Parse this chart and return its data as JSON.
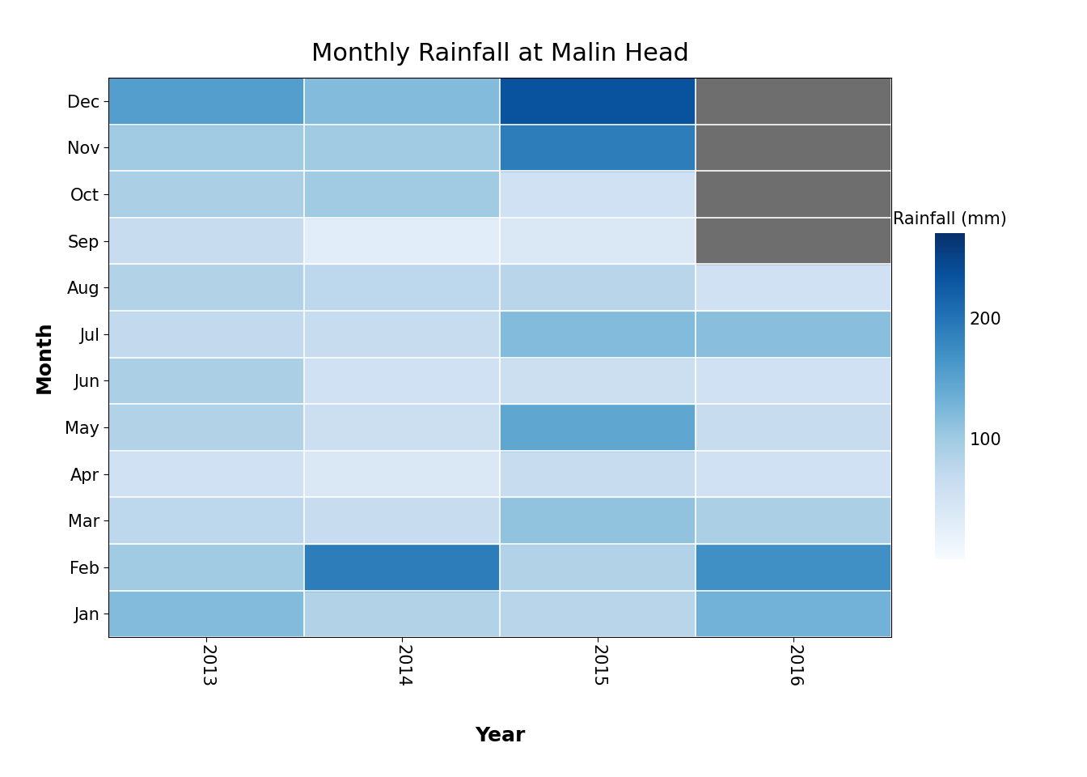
{
  "title": "Monthly Rainfall at Malin Head",
  "xlabel": "Year",
  "ylabel": "Month",
  "months": [
    "Jan",
    "Feb",
    "Mar",
    "Apr",
    "May",
    "Jun",
    "Jul",
    "Aug",
    "Sep",
    "Oct",
    "Nov",
    "Dec"
  ],
  "years": [
    "2013",
    "2014",
    "2015",
    "2016"
  ],
  "rainfall": [
    [
      120,
      85,
      80,
      130
    ],
    [
      100,
      190,
      85,
      170
    ],
    [
      75,
      65,
      110,
      90
    ],
    [
      55,
      40,
      65,
      55
    ],
    [
      85,
      60,
      145,
      65
    ],
    [
      90,
      55,
      60,
      55
    ],
    [
      70,
      65,
      120,
      115
    ],
    [
      85,
      75,
      80,
      55
    ],
    [
      65,
      30,
      40,
      null
    ],
    [
      90,
      100,
      55,
      null
    ],
    [
      100,
      100,
      190,
      null
    ],
    [
      155,
      120,
      235,
      null
    ]
  ],
  "colorbar_label": "Rainfall (mm)",
  "colorbar_ticks": [
    100,
    200
  ],
  "vmin": 0,
  "vmax": 270,
  "na_color": "#6e6e6e",
  "cmap": "Blues",
  "background_color": "#ffffff",
  "grid_color": "#ffffff",
  "title_fontsize": 22,
  "label_fontsize": 18,
  "tick_fontsize": 15,
  "cbar_label_fontsize": 15
}
